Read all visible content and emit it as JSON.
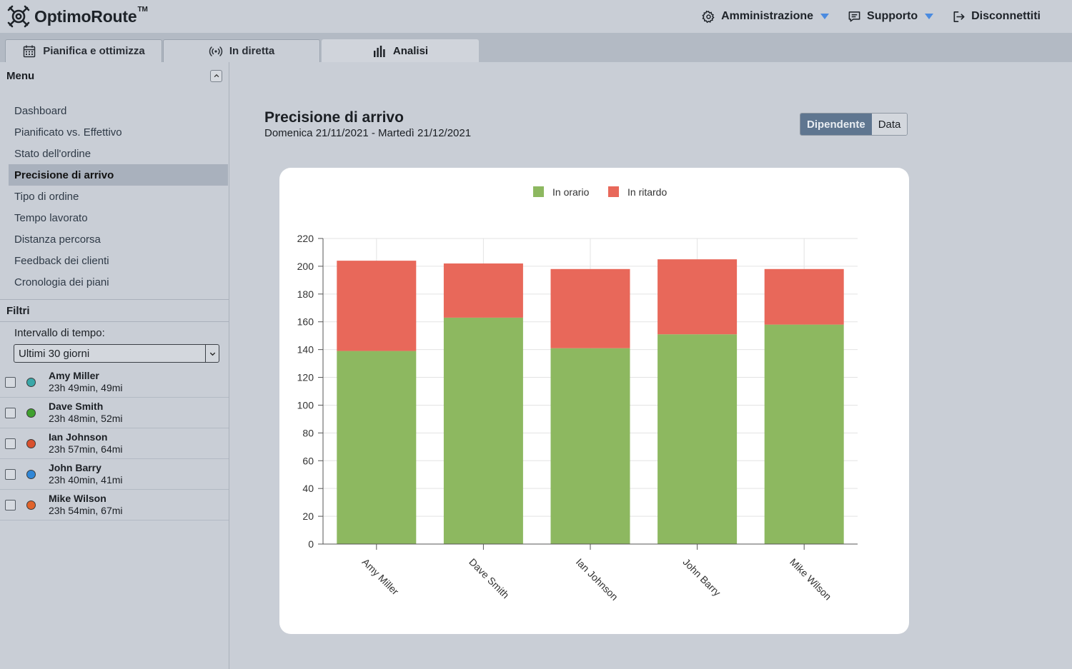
{
  "app": {
    "logo_text": "OptimoRoute",
    "logo_tm": "TM"
  },
  "topnav": [
    {
      "label": "Amministrazione",
      "icon": "gear-icon",
      "dropdown": true
    },
    {
      "label": "Supporto",
      "icon": "chat-icon",
      "dropdown": true
    },
    {
      "label": "Disconnettiti",
      "icon": "logout-icon",
      "dropdown": false
    }
  ],
  "tabs": [
    {
      "label": "Pianifica e ottimizza",
      "icon": "calendar-icon"
    },
    {
      "label": "In diretta",
      "icon": "broadcast-icon"
    },
    {
      "label": "Analisi",
      "icon": "bar-chart-icon",
      "active": true
    }
  ],
  "sidebar": {
    "menu_title": "Menu",
    "items": [
      {
        "label": "Dashboard"
      },
      {
        "label": "Pianificato vs. Effettivo"
      },
      {
        "label": "Stato dell'ordine"
      },
      {
        "label": "Precisione di arrivo",
        "active": true
      },
      {
        "label": "Tipo di ordine"
      },
      {
        "label": "Tempo lavorato"
      },
      {
        "label": "Distanza percorsa"
      },
      {
        "label": "Feedback dei clienti"
      },
      {
        "label": "Cronologia dei piani"
      }
    ],
    "filters_title": "Filtri",
    "interval_label": "Intervallo di tempo:",
    "interval_value": "Ultimi 30 giorni",
    "drivers": [
      {
        "name": "Amy Miller",
        "stats": "23h 49min, 49mi",
        "color": "#3aa7a8"
      },
      {
        "name": "Dave Smith",
        "stats": "23h 48min, 52mi",
        "color": "#3fa02e"
      },
      {
        "name": "Ian Johnson",
        "stats": "23h 57min, 64mi",
        "color": "#d9512e"
      },
      {
        "name": "John Barry",
        "stats": "23h 40min, 41mi",
        "color": "#2f86d6"
      },
      {
        "name": "Mike Wilson",
        "stats": "23h 54min, 67mi",
        "color": "#e0632b"
      }
    ]
  },
  "main": {
    "title": "Precisione di arrivo",
    "subtitle": "Domenica 21/11/2021 - Martedì 21/12/2021",
    "toggle": [
      {
        "label": "Dipendente",
        "active": true
      },
      {
        "label": "Data"
      }
    ]
  },
  "colors": {
    "on_time": "#8db860",
    "late": "#e8685a"
  },
  "chart_data": {
    "type": "bar",
    "stacked": true,
    "categories": [
      "Amy Miller",
      "Dave Smith",
      "Ian Johnson",
      "John Barry",
      "Mike Wilson"
    ],
    "series": [
      {
        "name": "In orario",
        "values": [
          139,
          163,
          141,
          151,
          158
        ]
      },
      {
        "name": "In ritardo",
        "values": [
          65,
          39,
          57,
          54,
          40
        ]
      }
    ],
    "title": "",
    "xlabel": "",
    "ylabel": "",
    "ylim": [
      0,
      220
    ],
    "yticks": [
      0,
      20,
      40,
      60,
      80,
      100,
      120,
      140,
      160,
      180,
      200,
      220
    ],
    "legend_position": "top-center",
    "grid": true
  }
}
